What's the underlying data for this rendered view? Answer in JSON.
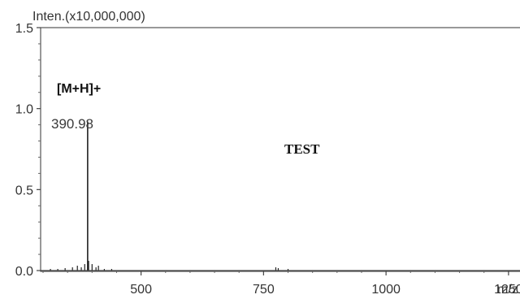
{
  "chart_data": {
    "type": "line",
    "title": "",
    "ylabel": "Inten.(x10,000,000)",
    "xlabel": "m/z",
    "xlim": [
      295,
      1290
    ],
    "ylim": [
      0,
      1.5
    ],
    "x_ticks": [
      500,
      750,
      1000,
      1250
    ],
    "y_ticks": [
      0.0,
      0.5,
      1.0,
      1.5
    ],
    "y_tick_labels": [
      "0.0",
      "0.5",
      "1.0",
      "1.5"
    ],
    "grid": false,
    "series": [
      {
        "peaks": [
          {
            "x": 315,
            "y": 0.01
          },
          {
            "x": 330,
            "y": 0.01
          },
          {
            "x": 345,
            "y": 0.015
          },
          {
            "x": 360,
            "y": 0.02
          },
          {
            "x": 370,
            "y": 0.03
          },
          {
            "x": 378,
            "y": 0.02
          },
          {
            "x": 385,
            "y": 0.04
          },
          {
            "x": 390.98,
            "y": 0.92
          },
          {
            "x": 393,
            "y": 0.06
          },
          {
            "x": 400,
            "y": 0.04
          },
          {
            "x": 408,
            "y": 0.02
          },
          {
            "x": 413,
            "y": 0.03
          },
          {
            "x": 425,
            "y": 0.01
          },
          {
            "x": 440,
            "y": 0.01
          },
          {
            "x": 775,
            "y": 0.02
          },
          {
            "x": 780,
            "y": 0.015
          },
          {
            "x": 800,
            "y": 0.01
          }
        ]
      }
    ],
    "annotations": [
      {
        "text": "390.98",
        "x": 390.98,
        "y": 0.92
      },
      {
        "text": "[M+H]+",
        "x": 390.98,
        "y": 0.92
      }
    ],
    "overlay_text": "TEST"
  }
}
